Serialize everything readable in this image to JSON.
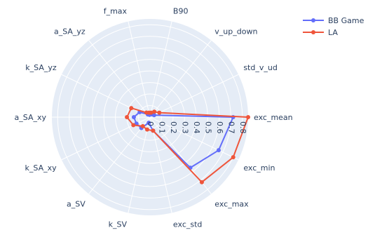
{
  "chart_data": {
    "type": "radar",
    "axes": [
      "exc_mean",
      "std_v_ud",
      "v_up_down",
      "B90",
      "f_max",
      "a_SA_yz",
      "k_SA_yz",
      "a_SA_xy",
      "k_SA_xy",
      "a_SV",
      "k_SV",
      "exc_std",
      "exc_max",
      "exc_min"
    ],
    "radial_range": [
      0,
      0.85
    ],
    "radial_ticks": [
      0,
      0.1,
      0.2,
      0.3,
      0.4,
      0.5,
      0.6,
      0.7,
      0.8
    ],
    "radial_tick_labels": [
      "0",
      "0.1",
      "0.2",
      "0.3",
      "0.4",
      "0.5",
      "0.6",
      "0.7",
      "0.8"
    ],
    "series": [
      {
        "name": "BB Game",
        "color": "#636efa",
        "values": [
          0.72,
          0.04,
          0.03,
          0.03,
          0.02,
          0.03,
          0.1,
          0.14,
          0.13,
          0.12,
          0.05,
          0.12,
          0.56,
          0.66
        ]
      },
      {
        "name": "LA",
        "color": "#ef553b",
        "values": [
          0.85,
          0.09,
          0.06,
          0.04,
          0.04,
          0.05,
          0.18,
          0.2,
          0.16,
          0.1,
          0.11,
          0.12,
          0.72,
          0.8
        ]
      }
    ],
    "legend_position": "top-right"
  }
}
